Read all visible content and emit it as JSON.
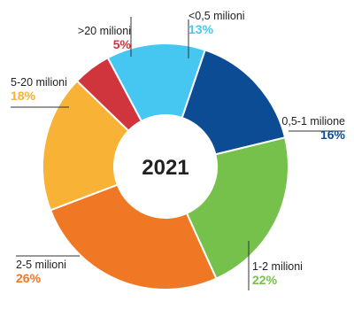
{
  "chart_data": {
    "type": "pie",
    "title": "",
    "center_label": "2021",
    "donut": true,
    "slices": [
      {
        "label": "<0,5 milioni",
        "value": 13,
        "value_label": "13%",
        "color": "#45C7F2"
      },
      {
        "label": "0,5-1 milione",
        "value": 16,
        "value_label": "16%",
        "color": "#0C4C95"
      },
      {
        "label": "1-2 milioni",
        "value": 22,
        "value_label": "22%",
        "color": "#75C14B"
      },
      {
        "label": "2-5 milioni",
        "value": 26,
        "value_label": "26%",
        "color": "#F07724"
      },
      {
        "label": "5-20 milioni",
        "value": 18,
        "value_label": "18%",
        "color": "#F8B236"
      },
      {
        "label": ">20 milioni",
        "value": 5,
        "value_label": "5%",
        "color": "#D0343D"
      }
    ]
  }
}
